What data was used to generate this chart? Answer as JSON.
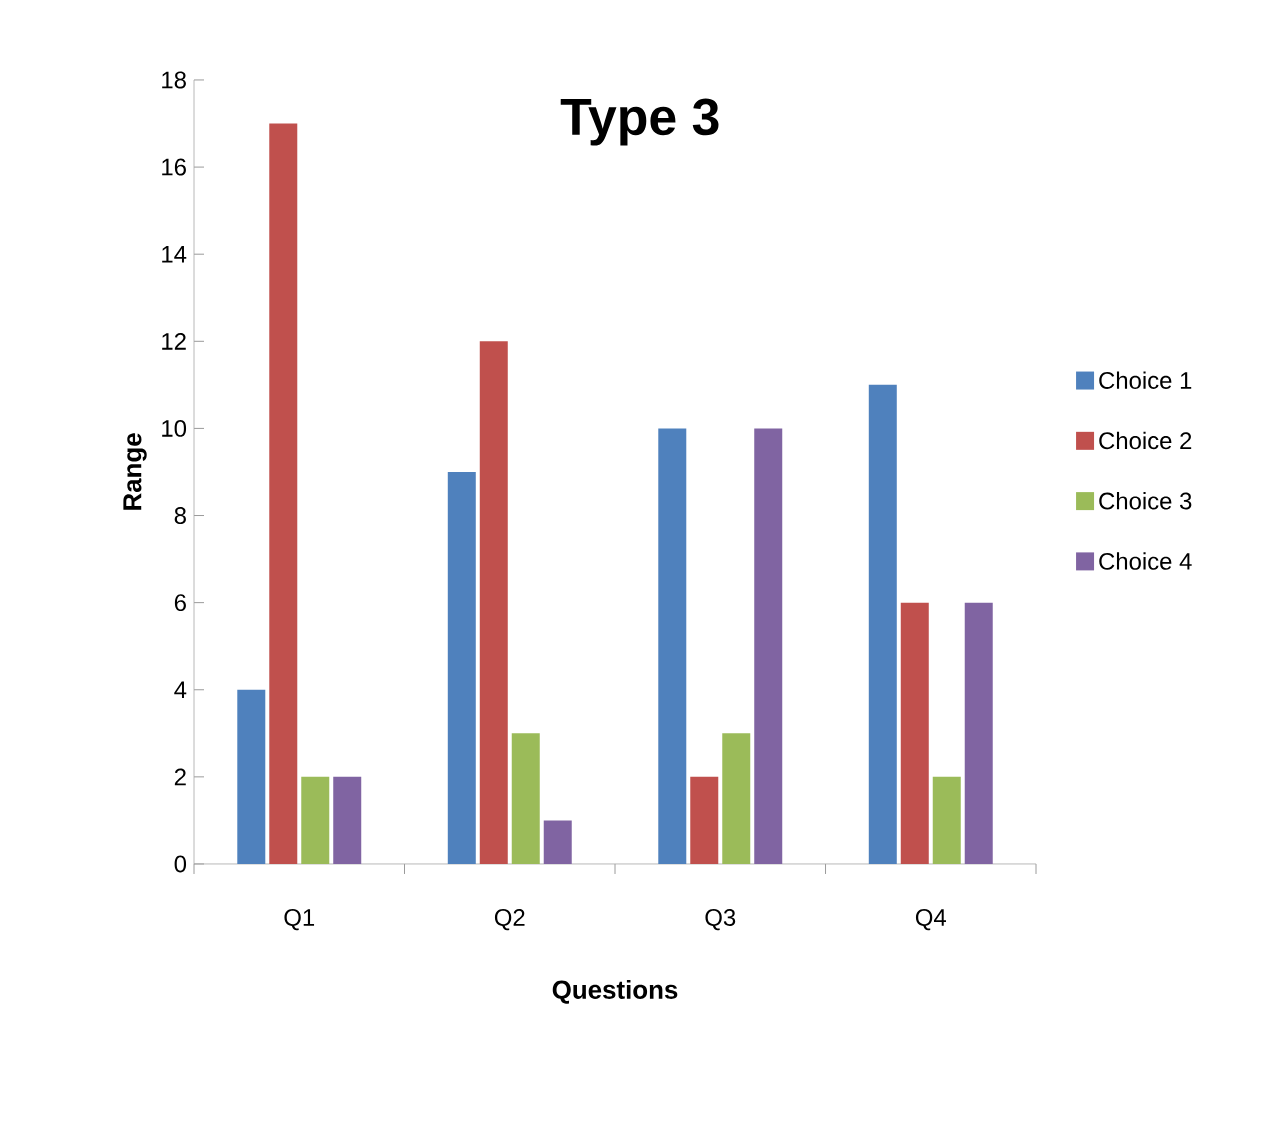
{
  "chart_data": {
    "type": "bar",
    "title": "Type 3",
    "xlabel": "Questions",
    "ylabel": "Range",
    "categories": [
      "Q1",
      "Q2",
      "Q3",
      "Q4"
    ],
    "series": [
      {
        "name": "Choice 1",
        "color": "#4f81bd",
        "values": [
          4,
          9,
          10,
          11
        ]
      },
      {
        "name": "Choice 2",
        "color": "#c0504d",
        "values": [
          17,
          12,
          2,
          6
        ]
      },
      {
        "name": "Choice 3",
        "color": "#9bbb59",
        "values": [
          2,
          3,
          3,
          2
        ]
      },
      {
        "name": "Choice 4",
        "color": "#8064a2",
        "values": [
          2,
          1,
          10,
          6
        ]
      }
    ],
    "ylim": [
      0,
      18
    ],
    "yticks": [
      0,
      2,
      4,
      6,
      8,
      10,
      12,
      14,
      16,
      18
    ],
    "legend": "right",
    "grid": false
  }
}
